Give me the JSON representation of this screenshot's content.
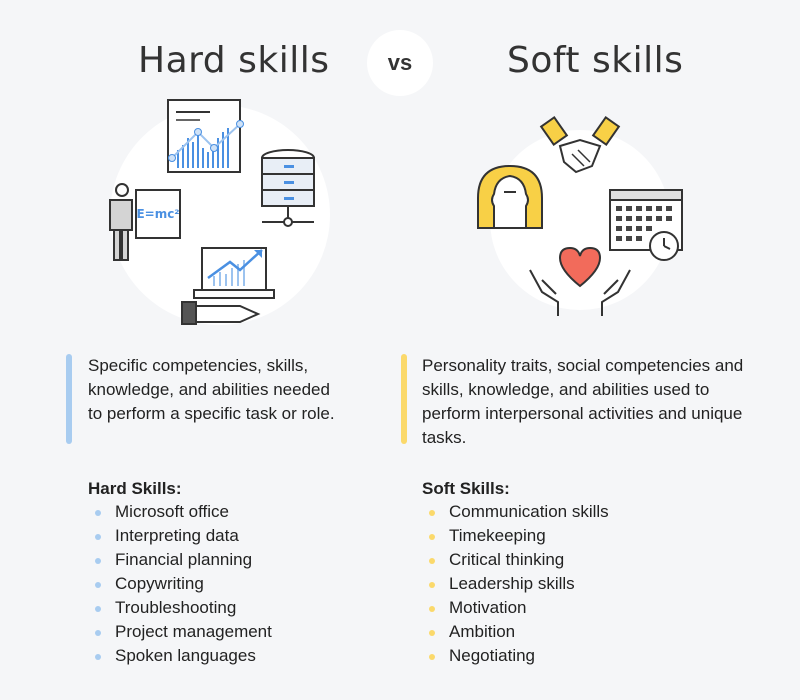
{
  "colors": {
    "hard_accent": "#a8ccf0",
    "soft_accent": "#fbd96b",
    "illustration_blue": "#4a90e2",
    "illustration_yellow": "#f8d046",
    "heart_red": "#f26b5b",
    "background": "#f5f6f8"
  },
  "hard": {
    "title": "Hard skills",
    "description": "Specific competencies, skills, knowledge, and abilities needed to perform a specific task or role.",
    "list_heading": "Hard Skills:",
    "items": [
      "Microsoft office",
      "Interpreting data",
      "Financial planning",
      "Copywriting",
      "Troubleshooting",
      "Project management",
      "Spoken languages"
    ],
    "icons": [
      "line-chart-icon",
      "database-icon",
      "teacher-board-icon",
      "laptop-growth-icon"
    ],
    "board_text": "E=mc²"
  },
  "vs_label": "vs",
  "soft": {
    "title": "Soft skills",
    "description": "Personality traits, social competencies and skills, knowledge, and abilities used to perform interpersonal activities and unique tasks.",
    "list_heading": "Soft Skills:",
    "items": [
      "Communication skills",
      "Timekeeping",
      "Critical thinking",
      "Leadership skills",
      "Motivation",
      "Ambition",
      "Negotiating"
    ],
    "icons": [
      "handshake-icon",
      "head-profile-icon",
      "calendar-clock-icon",
      "heart-hands-icon"
    ]
  }
}
